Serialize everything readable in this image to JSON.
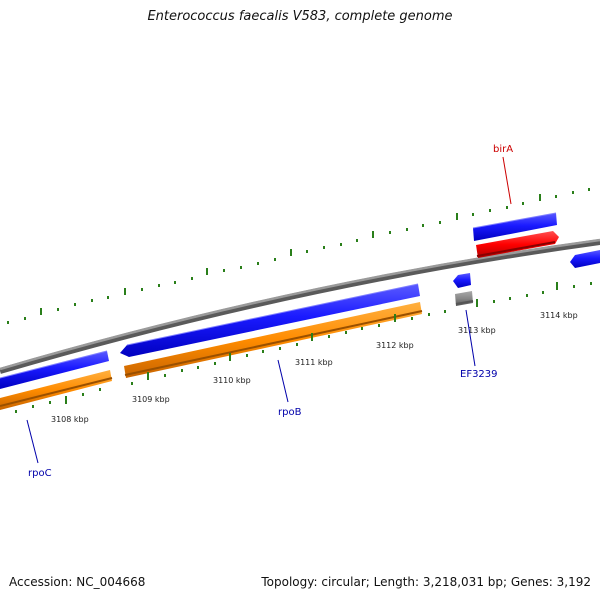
{
  "title": "Enterococcus faecalis V583, complete genome",
  "footer": {
    "accession": "Accession: NC_004668",
    "topology": "Topology: circular; Length: 3,218,031 bp; Genes: 3,192"
  },
  "ticks": [
    "3108 kbp",
    "3109 kbp",
    "3110 kbp",
    "3111 kbp",
    "3112 kbp",
    "3113 kbp",
    "3114 kbp"
  ],
  "genes": {
    "rpoC": "rpoC",
    "rpoB": "rpoB",
    "EF3239": "EF3239",
    "birA": "birA"
  },
  "colors": {
    "forward_cds": "#1a1aff",
    "reverse_cds": "#ff8c00",
    "birA": "#ff0000",
    "EF3239_rna": "#bbbbbb",
    "backbone": "#888888",
    "tick": "#2a7f1a",
    "label_blue": "#0000aa",
    "label_red": "#cc0000"
  }
}
